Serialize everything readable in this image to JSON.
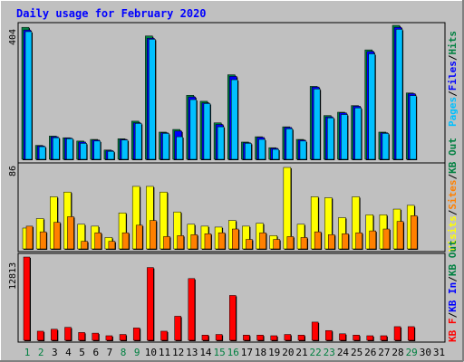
{
  "title": "Daily usage for February 2020",
  "colors": {
    "background": "#c0c0c0",
    "panel": "#c0c0c0",
    "grid_border": "#000000",
    "title_text": "#0000ff",
    "hits": "#008040",
    "files": "#0000ff",
    "pages": "#00c0ff",
    "visits": "#ffff00",
    "sites": "#ff8000",
    "kb_out": "#008040",
    "kb_in": "#0000ff",
    "kb_f": "#ff0000",
    "weekend_label": "#008040",
    "weekday_label": "#000000"
  },
  "chart_data": [
    {
      "type": "bar",
      "name": "hits-files-pages",
      "ymax_label": "404",
      "ymax": 404,
      "legend": [
        "Pages",
        "/",
        "Files",
        "/",
        "Hits"
      ],
      "series": [
        {
          "name": "Hits",
          "values": [
            398,
            42,
            70,
            65,
            55,
            60,
            28,
            62,
            115,
            372,
            82,
            90,
            193,
            175,
            110,
            255,
            52,
            68,
            35,
            98,
            60,
            220,
            132,
            142,
            162,
            330,
            82,
            404,
            200,
            0,
            0
          ]
        },
        {
          "name": "Files",
          "values": [
            390,
            40,
            68,
            64,
            52,
            58,
            26,
            60,
            110,
            365,
            80,
            85,
            188,
            170,
            105,
            250,
            50,
            66,
            33,
            96,
            58,
            218,
            128,
            140,
            160,
            325,
            80,
            398,
            198,
            0,
            0
          ]
        },
        {
          "name": "Pages",
          "values": [
            385,
            38,
            65,
            62,
            48,
            55,
            24,
            58,
            108,
            362,
            78,
            68,
            180,
            168,
            98,
            240,
            48,
            60,
            30,
            92,
            55,
            212,
            125,
            135,
            155,
            318,
            78,
            392,
            192,
            0,
            0
          ]
        }
      ]
    },
    {
      "type": "bar",
      "name": "visits-sites",
      "ymax_label": "86",
      "ymax": 86,
      "legend": [
        "Visits",
        "/",
        "Sites",
        "/",
        "KB Out"
      ],
      "series": [
        {
          "name": "Visits",
          "values": [
            22,
            32,
            55,
            60,
            26,
            24,
            12,
            38,
            66,
            66,
            60,
            39,
            26,
            24,
            23,
            30,
            24,
            27,
            14,
            86,
            26,
            55,
            54,
            33,
            55,
            36,
            36,
            42,
            46,
            0,
            0
          ]
        },
        {
          "name": "Sites",
          "values": [
            24,
            18,
            28,
            34,
            8,
            17,
            8,
            17,
            25,
            30,
            13,
            14,
            15,
            16,
            17,
            21,
            10,
            17,
            10,
            13,
            12,
            18,
            15,
            16,
            17,
            19,
            21,
            29,
            35,
            0,
            0
          ]
        }
      ]
    },
    {
      "type": "bar",
      "name": "kbytes",
      "ymax_label": "12813",
      "ymax": 12813,
      "legend": [
        "KB",
        "F",
        "/",
        "KB",
        "In",
        "/",
        "KB",
        "Out"
      ],
      "series": [
        {
          "name": "KB F",
          "values": [
            12813,
            1400,
            1700,
            2000,
            1200,
            1100,
            700,
            900,
            1900,
            11200,
            1400,
            3700,
            9500,
            800,
            900,
            6900,
            800,
            800,
            700,
            900,
            800,
            2800,
            1500,
            1000,
            800,
            700,
            700,
            2100,
            2100,
            0,
            0
          ]
        }
      ]
    }
  ],
  "days": [
    "1",
    "2",
    "3",
    "4",
    "5",
    "6",
    "7",
    "8",
    "9",
    "10",
    "11",
    "12",
    "13",
    "14",
    "15",
    "16",
    "17",
    "18",
    "19",
    "20",
    "21",
    "22",
    "23",
    "24",
    "25",
    "26",
    "27",
    "28",
    "29",
    "30",
    "31"
  ],
  "weekend_days": [
    "1",
    "2",
    "8",
    "9",
    "15",
    "16",
    "22",
    "23",
    "29"
  ]
}
